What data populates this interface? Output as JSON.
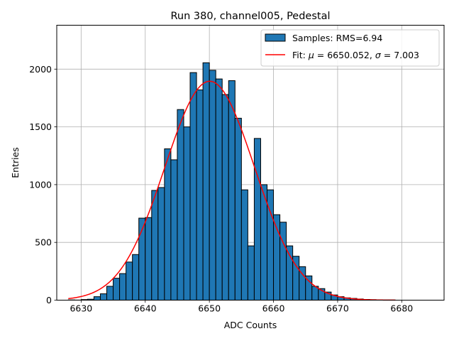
{
  "chart_data": {
    "type": "bar",
    "title": "Run 380, channel005, Pedestal",
    "xlabel": "ADC Counts",
    "ylabel": "Entries",
    "xlim": [
      6626.2,
      6686.6
    ],
    "ylim": [
      0,
      2380
    ],
    "xticks": [
      6630,
      6640,
      6650,
      6660,
      6670,
      6680
    ],
    "yticks": [
      0,
      500,
      1000,
      1500,
      2000
    ],
    "xtick_labels": [
      "6630",
      "6640",
      "6650",
      "6660",
      "6670",
      "6680"
    ],
    "ytick_labels": [
      "0",
      "500",
      "1000",
      "1500",
      "2000"
    ],
    "grid": true,
    "legend_position": "top-right",
    "histogram": {
      "name": "Samples: RMS=6.94",
      "color": "#1f77b4",
      "edge_color": "#000000",
      "bin_width": 1,
      "bin_starts": [
        6628,
        6629,
        6630,
        6631,
        6632,
        6633,
        6634,
        6635,
        6636,
        6637,
        6638,
        6639,
        6640,
        6641,
        6642,
        6643,
        6644,
        6645,
        6646,
        6647,
        6648,
        6649,
        6650,
        6651,
        6652,
        6653,
        6654,
        6655,
        6656,
        6657,
        6658,
        6659,
        6660,
        6661,
        6662,
        6663,
        6664,
        6665,
        6666,
        6667,
        6668,
        6669,
        6670,
        6671,
        6672,
        6673,
        6674,
        6675,
        6676,
        6677,
        6678,
        6679,
        6680,
        6681,
        6682,
        6683,
        6684
      ],
      "values": [
        2,
        1,
        5,
        8,
        30,
        55,
        120,
        190,
        230,
        330,
        395,
        710,
        715,
        950,
        975,
        1310,
        1215,
        1650,
        1500,
        1970,
        1820,
        2055,
        1990,
        1915,
        1780,
        1900,
        1575,
        955,
        470,
        1400,
        1000,
        955,
        740,
        675,
        470,
        380,
        290,
        210,
        120,
        100,
        70,
        45,
        30,
        20,
        15,
        10,
        6,
        4,
        2,
        1,
        1,
        0,
        0,
        0,
        0,
        0,
        0
      ]
    },
    "fit": {
      "name": "Fit: μ = 6650.052, σ = 7.003",
      "name_prefix": "Fit: ",
      "mu_label": "6650.052",
      "sigma_label": "7.003",
      "color": "#ff0000",
      "mu": 6650.052,
      "sigma": 7.003,
      "amplitude": 1895,
      "x_range": [
        6628,
        6679
      ]
    }
  }
}
